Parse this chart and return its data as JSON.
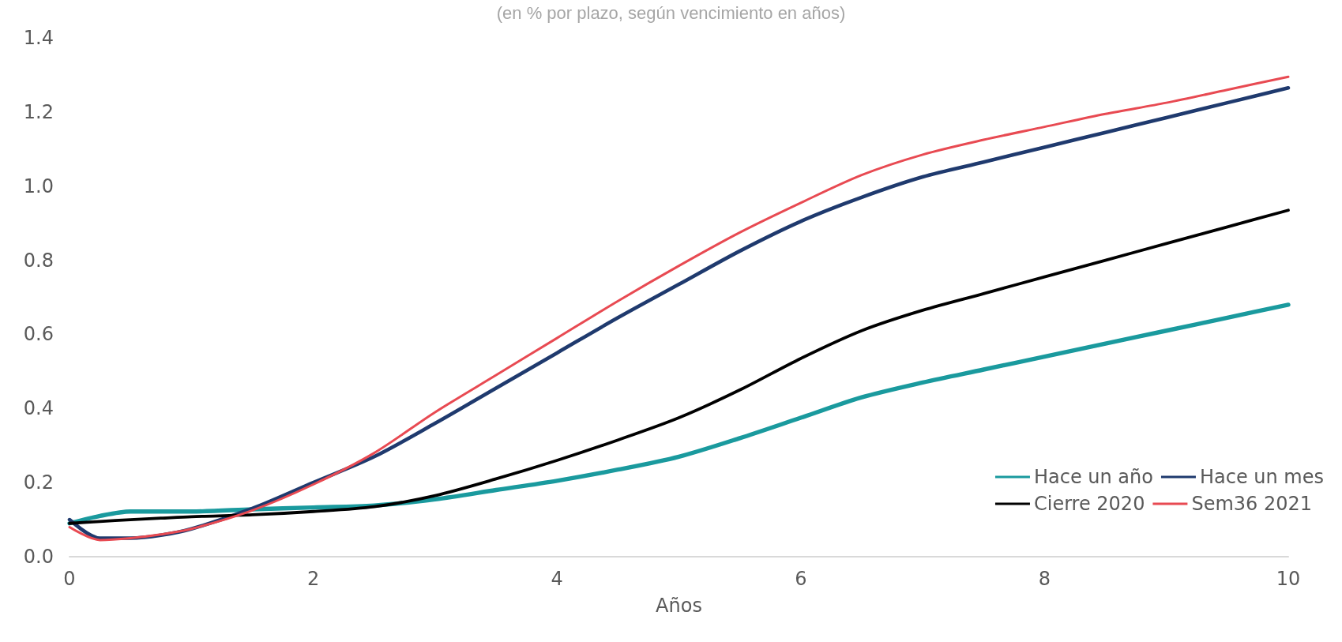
{
  "chart_data": {
    "type": "line",
    "subtitle": "(en % por plazo, según vencimiento en años)",
    "xlabel": "Años",
    "x": [
      0,
      0.25,
      0.5,
      0.75,
      1,
      1.5,
      2,
      2.5,
      3,
      3.5,
      4,
      4.5,
      5,
      5.5,
      6,
      6.5,
      7,
      7.5,
      8,
      8.5,
      9,
      9.5,
      10
    ],
    "series": [
      {
        "name": "Hace un año",
        "color": "#1a9a9e",
        "values": [
          0.09,
          0.11,
          0.122,
          0.122,
          0.122,
          0.128,
          0.133,
          0.138,
          0.155,
          0.18,
          0.205,
          0.235,
          0.27,
          0.32,
          0.375,
          0.43,
          0.47,
          0.505,
          0.54,
          0.575,
          0.61,
          0.645,
          0.68
        ]
      },
      {
        "name": "Hace un mes",
        "color": "#1f3a6e",
        "values": [
          0.1,
          0.05,
          0.05,
          0.058,
          0.075,
          0.13,
          0.2,
          0.27,
          0.36,
          0.455,
          0.55,
          0.645,
          0.735,
          0.825,
          0.905,
          0.97,
          1.025,
          1.065,
          1.105,
          1.145,
          1.185,
          1.225,
          1.265
        ]
      },
      {
        "name": "Cierre 2020",
        "color": "#000000",
        "values": [
          0.09,
          0.095,
          0.1,
          0.104,
          0.108,
          0.113,
          0.122,
          0.135,
          0.165,
          0.21,
          0.26,
          0.315,
          0.375,
          0.45,
          0.535,
          0.61,
          0.665,
          0.71,
          0.755,
          0.8,
          0.845,
          0.89,
          0.935
        ]
      },
      {
        "name": "Sem36 2021",
        "color": "#e84a52",
        "values": [
          0.08,
          0.045,
          0.05,
          0.06,
          0.075,
          0.125,
          0.195,
          0.28,
          0.39,
          0.49,
          0.59,
          0.69,
          0.785,
          0.875,
          0.955,
          1.03,
          1.085,
          1.125,
          1.16,
          1.195,
          1.225,
          1.26,
          1.295
        ]
      }
    ],
    "xlim": [
      0,
      10
    ],
    "xticks": [
      0,
      2,
      4,
      6,
      8,
      10
    ],
    "ylim": [
      0,
      1.4
    ],
    "yticks": [
      {
        "value": 0,
        "label": "0.0"
      },
      0.2,
      0.4,
      0.6,
      0.8,
      {
        "value": 1,
        "label": "1.0"
      },
      1.2,
      1.4
    ],
    "grid": false,
    "legend": "bottom right",
    "marker": "none",
    "line_style": "solid"
  }
}
